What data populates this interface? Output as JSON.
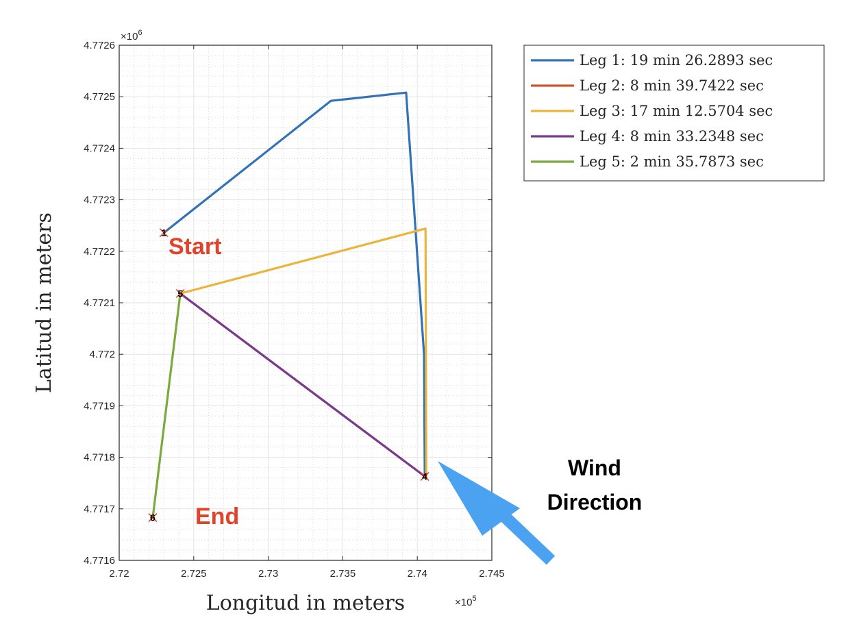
{
  "chart_data": {
    "type": "line",
    "xlabel": "Longitud in meters",
    "ylabel": "Latitud in meters",
    "x_multiplier": "×10",
    "x_exponent": "5",
    "y_multiplier": "×10",
    "y_exponent": "6",
    "xlim": [
      272000,
      274500
    ],
    "ylim": [
      4771600,
      4772600
    ],
    "x_ticks": [
      272000,
      272500,
      273000,
      273500,
      274000,
      274500
    ],
    "x_tick_labels": [
      "2.72",
      "2.725",
      "2.73",
      "2.735",
      "2.74",
      "2.745"
    ],
    "y_ticks": [
      4771600,
      4771700,
      4771800,
      4771900,
      4772000,
      4772100,
      4772200,
      4772300,
      4772400,
      4772500,
      4772600
    ],
    "y_tick_labels": [
      "4.7716",
      "4.7717",
      "4.7718",
      "4.7719",
      "4.772",
      "4.7721",
      "4.7722",
      "4.7723",
      "4.7724",
      "4.7725",
      "4.7726"
    ],
    "grid": true,
    "minor_grid": true,
    "legend_position": "outside-top-right",
    "series": [
      {
        "name": "Leg 1: 19 min 26.2893 sec",
        "color": "#3272b6",
        "points": [
          [
            272300,
            4772236
          ],
          [
            273420,
            4772492
          ],
          [
            273925,
            4772508
          ],
          [
            274045,
            4772000
          ],
          [
            274050,
            4771763
          ]
        ]
      },
      {
        "name": "Leg 2: 8 min 39.7422 sec",
        "color": "#d4552a",
        "points": [
          [
            274050,
            4771763
          ],
          [
            272410,
            4772118
          ]
        ]
      },
      {
        "name": "Leg 3: 17 min 12.5704 sec",
        "color": "#ebb43c",
        "points": [
          [
            272410,
            4772118
          ],
          [
            274055,
            4772244
          ],
          [
            274060,
            4771763
          ]
        ]
      },
      {
        "name": "Leg 4: 8 min 33.2348 sec",
        "color": "#7b3a92",
        "points": [
          [
            274050,
            4771763
          ],
          [
            272410,
            4772118
          ]
        ]
      },
      {
        "name": "Leg 5: 2 min 35.7873 sec",
        "color": "#78ab3c",
        "points": [
          [
            272410,
            4772118
          ],
          [
            272225,
            4771683
          ]
        ]
      }
    ],
    "waypoints": [
      {
        "label": "1",
        "x": 272300,
        "y": 4772236
      },
      {
        "label": "5",
        "x": 272410,
        "y": 4772118
      },
      {
        "label": "4",
        "x": 274050,
        "y": 4771763
      },
      {
        "label": "6",
        "x": 272225,
        "y": 4771683
      }
    ],
    "annotations": {
      "start": "Start",
      "end": "End",
      "wind_line1": "Wind",
      "wind_line2": "Direction",
      "wind_arrow_color": "#4aa2f0"
    }
  }
}
